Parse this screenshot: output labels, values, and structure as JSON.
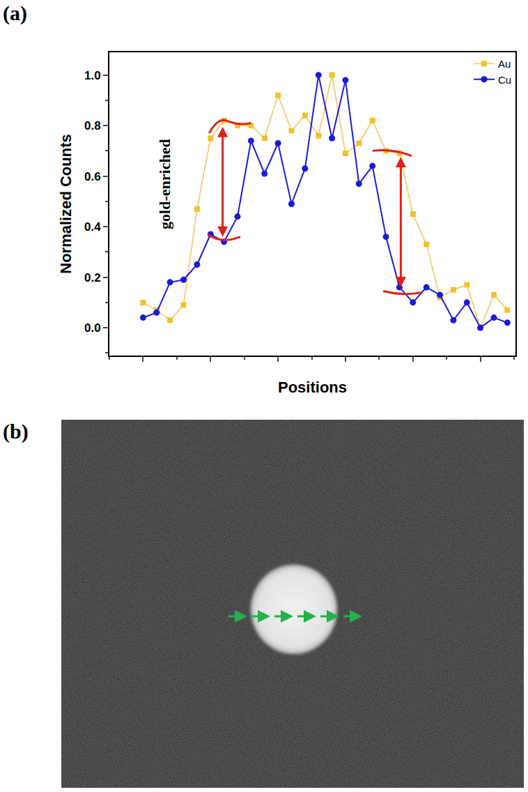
{
  "chart_data": {
    "type": "line",
    "x_label": "Positions",
    "y_label": "Normalized Counts",
    "x": [
      0,
      1,
      2,
      3,
      4,
      5,
      6,
      7,
      8,
      9,
      10,
      11,
      12,
      13,
      14,
      15,
      16,
      17,
      18,
      19,
      20,
      21,
      22,
      23,
      24,
      25,
      26,
      27
    ],
    "series": [
      {
        "name": "Au",
        "color": "#f2c12e",
        "marker": "square",
        "values": [
          0.1,
          0.07,
          0.03,
          0.09,
          0.47,
          0.75,
          0.82,
          0.8,
          0.8,
          0.75,
          0.92,
          0.78,
          0.84,
          0.76,
          1.0,
          0.69,
          0.73,
          0.82,
          0.7,
          0.69,
          0.45,
          0.33,
          0.12,
          0.15,
          0.17,
          0.0,
          0.13,
          0.07
        ]
      },
      {
        "name": "Cu",
        "color": "#1a1adb",
        "marker": "circle",
        "values": [
          0.04,
          0.06,
          0.18,
          0.19,
          0.25,
          0.37,
          0.34,
          0.44,
          0.74,
          0.61,
          0.73,
          0.49,
          0.63,
          1.0,
          0.75,
          0.98,
          0.57,
          0.64,
          0.36,
          0.16,
          0.1,
          0.16,
          0.13,
          0.03,
          0.1,
          0.0,
          0.04,
          0.02
        ]
      }
    ],
    "xlim": [
      -2.5,
      27.6
    ],
    "xticks": [
      0,
      5,
      10,
      15,
      20,
      25
    ],
    "ylim": [
      -0.11,
      1.09
    ],
    "yticks": [
      {
        "value": 0,
        "label": "0.0"
      },
      {
        "value": 0.2,
        "label": "0.2"
      },
      {
        "value": 0.4,
        "label": "0.4"
      },
      {
        "value": 0.6,
        "label": "0.6"
      },
      {
        "value": 0.8,
        "label": "0.8"
      },
      {
        "value": 1,
        "label": "1.0"
      }
    ],
    "legend": "top right",
    "tick_labels": "y",
    "annotations": [
      "gold-enriched"
    ]
  },
  "panel_labels": [
    "(a)",
    "(b)"
  ]
}
